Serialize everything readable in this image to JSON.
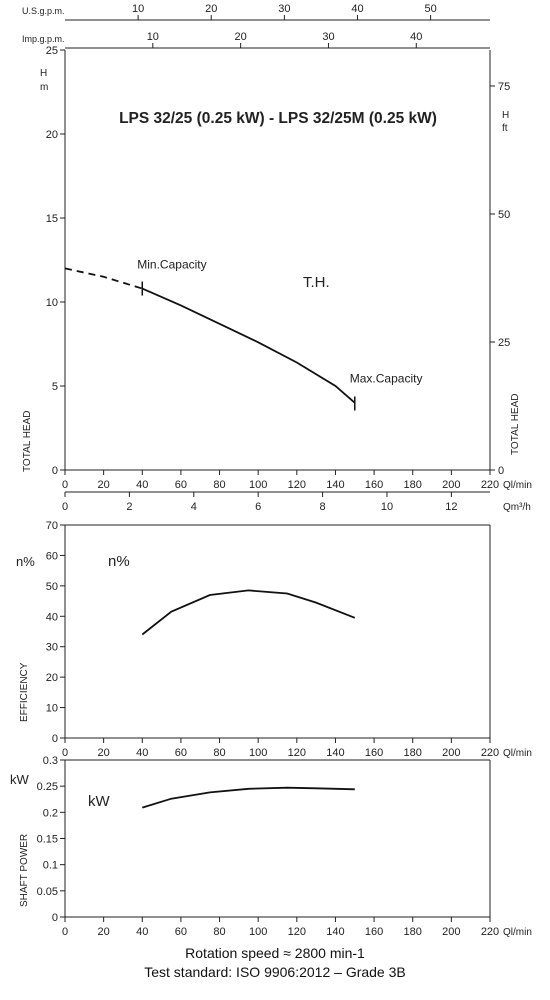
{
  "chart_data": [
    {
      "type": "line",
      "title": "LPS 32/25 (0.25 kW) - LPS 32/25M (0.25 kW)",
      "xlabel": "Ql/min",
      "ylabel": "TOTAL HEAD",
      "ylabel_left_unit": "m",
      "ylabel_left_symbol": "H",
      "ylabel_right_unit": "ft",
      "ylabel_right_symbol": "H",
      "xlim": [
        0,
        220
      ],
      "ylim": [
        0,
        25
      ],
      "x_ticks": [
        0,
        20,
        40,
        60,
        80,
        100,
        120,
        140,
        160,
        180,
        200,
        220
      ],
      "y_ticks": [
        0,
        5,
        10,
        15,
        20,
        25
      ],
      "y_right_ticks": [
        0,
        25,
        50,
        75
      ],
      "top_axes": [
        {
          "label": "U.S.g.p.m.",
          "ticks": [
            10,
            20,
            30,
            40,
            50
          ],
          "factor": 3.785
        },
        {
          "label": "Imp.g.p.m.",
          "ticks": [
            10,
            20,
            30,
            40
          ],
          "factor": 4.546
        }
      ],
      "bottom_axis_2": {
        "label": "Qm³/h",
        "ticks": [
          0,
          2,
          4,
          6,
          8,
          10,
          12
        ],
        "factor": 16.667
      },
      "series": [
        {
          "name": "T.H.",
          "dashed_x": [
            0,
            10,
            20,
            30,
            40
          ],
          "dashed_y": [
            12.0,
            11.75,
            11.5,
            11.15,
            10.8
          ],
          "x": [
            40,
            60,
            80,
            100,
            120,
            140,
            150
          ],
          "y": [
            10.8,
            9.8,
            8.7,
            7.6,
            6.4,
            5.0,
            4.0
          ]
        }
      ],
      "annotations": [
        {
          "text": "Min.Capacity",
          "x": 40,
          "y": 10.8
        },
        {
          "text": "Max.Capacity",
          "x": 150,
          "y": 3.9
        }
      ]
    },
    {
      "type": "line",
      "ylabel": "EFFICIENCY",
      "ylabel_unit": "n%",
      "xlabel": "Ql/min",
      "xlim": [
        0,
        220
      ],
      "ylim": [
        0,
        70
      ],
      "x_ticks": [
        0,
        20,
        40,
        60,
        80,
        100,
        120,
        140,
        160,
        180,
        200,
        220
      ],
      "y_ticks": [
        0,
        10,
        20,
        30,
        40,
        50,
        60,
        70
      ],
      "series": [
        {
          "name": "n%",
          "x": [
            40,
            55,
            75,
            95,
            115,
            130,
            150
          ],
          "y": [
            34,
            41.5,
            47,
            48.5,
            47.5,
            44.5,
            39.5
          ]
        }
      ]
    },
    {
      "type": "line",
      "ylabel": "SHAFT POWER",
      "ylabel_unit": "kW",
      "xlabel": "Ql/min",
      "xlim": [
        0,
        220
      ],
      "ylim": [
        0,
        0.3
      ],
      "x_ticks": [
        0,
        20,
        40,
        60,
        80,
        100,
        120,
        140,
        160,
        180,
        200,
        220
      ],
      "y_ticks": [
        0,
        0.05,
        0.1,
        0.15,
        0.2,
        0.25,
        0.3
      ],
      "series": [
        {
          "name": "kW",
          "x": [
            40,
            55,
            75,
            95,
            115,
            130,
            150
          ],
          "y": [
            0.209,
            0.226,
            0.238,
            0.245,
            0.247,
            0.246,
            0.244
          ]
        }
      ]
    }
  ],
  "footer": {
    "line1": "Rotation speed ≈ 2800 min-1",
    "line2": "Test standard: ISO 9906:2012 – Grade 3B"
  }
}
